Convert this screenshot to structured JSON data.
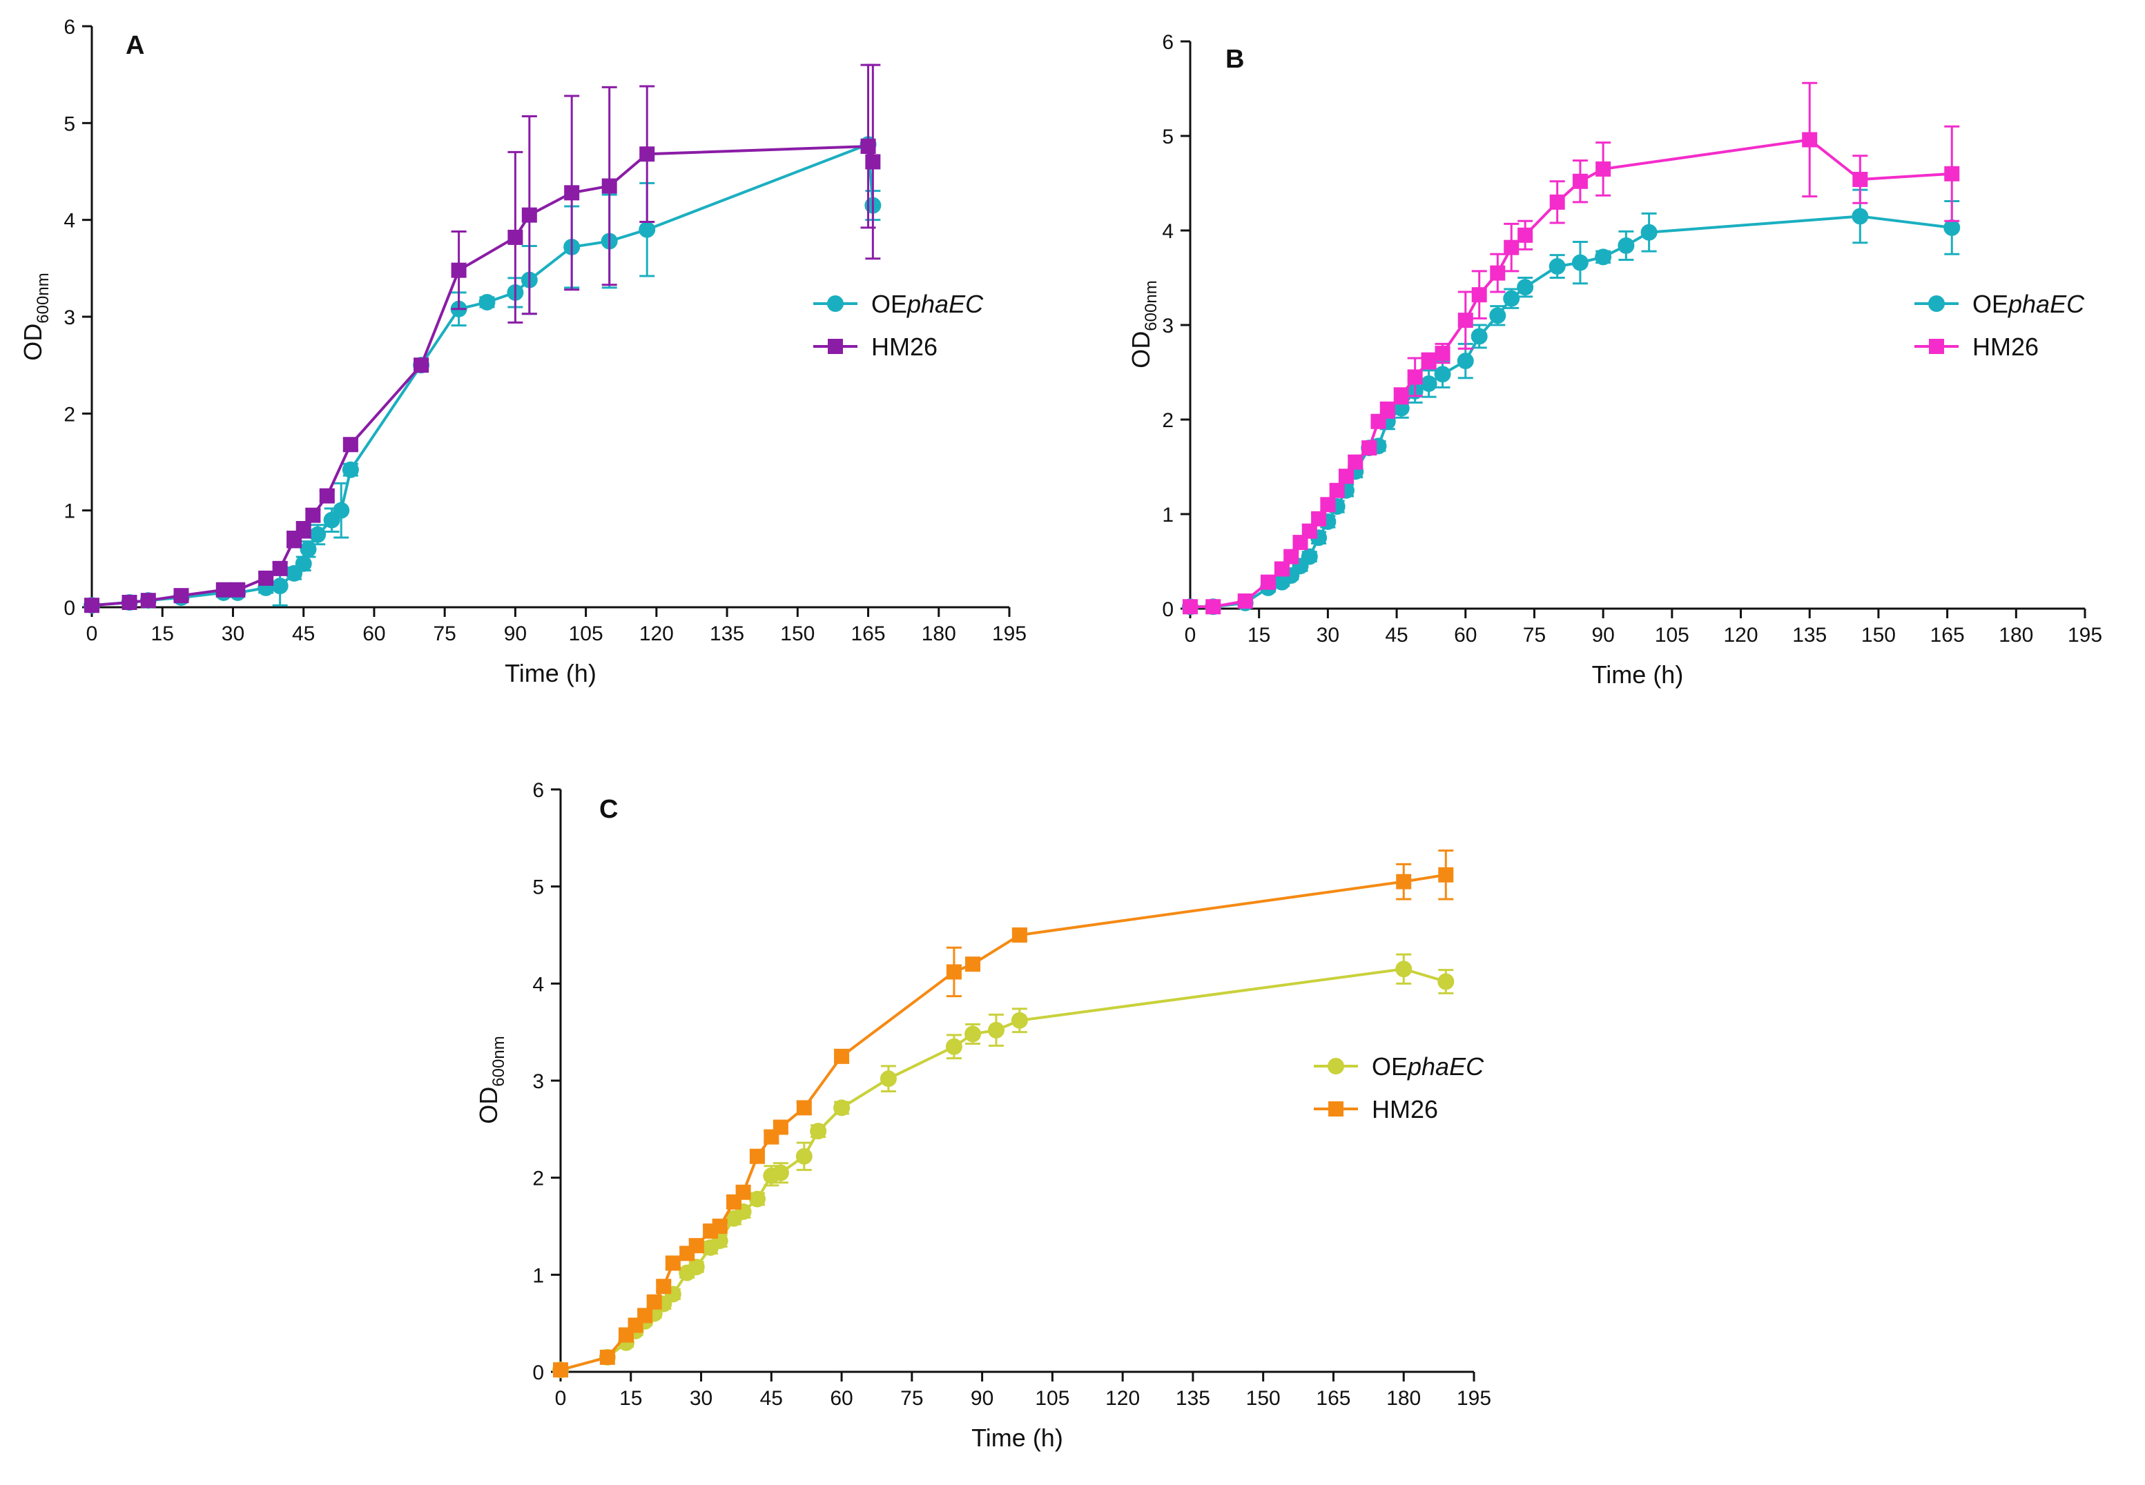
{
  "chart_data": [
    {
      "type": "line",
      "panel_label": "A",
      "xlabel": "Time (h)",
      "ylabel_main": "OD",
      "ylabel_sub": "600nm",
      "xlim": [
        0,
        195
      ],
      "ylim": [
        0,
        6
      ],
      "xticks": [
        "0",
        "15",
        "30",
        "45",
        "60",
        "75",
        "90",
        "105",
        "120",
        "135",
        "150",
        "165",
        "180",
        "195"
      ],
      "yticks": [
        "0",
        "1",
        "2",
        "3",
        "4",
        "5",
        "6"
      ],
      "legend_position": "right-middle",
      "series": [
        {
          "name_prefix": "OE",
          "name_italic": "phaEC",
          "marker": "circle",
          "color": "#1AAFC0",
          "x": [
            0,
            8,
            12,
            19,
            28,
            31,
            37,
            40,
            43,
            45,
            46,
            48,
            51,
            53,
            55,
            70,
            78,
            84,
            90,
            93,
            102,
            110,
            118,
            165,
            166
          ],
          "y": [
            0.02,
            0.05,
            0.07,
            0.1,
            0.15,
            0.15,
            0.2,
            0.22,
            0.35,
            0.45,
            0.6,
            0.75,
            0.9,
            1.0,
            1.42,
            2.5,
            3.08,
            3.15,
            3.25,
            3.38,
            3.72,
            3.78,
            3.9,
            4.78,
            4.15
          ],
          "err": [
            0.02,
            0.02,
            0.02,
            0.03,
            0.04,
            0.04,
            0.05,
            0.2,
            0.06,
            0.07,
            0.08,
            0.1,
            0.12,
            0.28,
            0.06,
            0.05,
            0.17,
            0.05,
            0.15,
            0.35,
            0.42,
            0.48,
            0.48,
            0.05,
            0.15
          ]
        },
        {
          "name": "HM26",
          "marker": "square",
          "color": "#8A1CA6",
          "x": [
            0,
            8,
            12,
            19,
            28,
            31,
            37,
            40,
            43,
            45,
            47,
            50,
            55,
            70,
            78,
            90,
            93,
            102,
            110,
            118,
            165,
            166
          ],
          "y": [
            0.02,
            0.05,
            0.07,
            0.12,
            0.18,
            0.18,
            0.3,
            0.4,
            0.7,
            0.8,
            0.95,
            1.15,
            1.68,
            2.5,
            3.48,
            3.82,
            4.05,
            4.28,
            4.35,
            4.68,
            4.76,
            4.6
          ],
          "err": [
            0.02,
            0.02,
            0.02,
            0.04,
            0.04,
            0.04,
            0.05,
            0.06,
            0.08,
            0.08,
            0.06,
            0.05,
            0.06,
            0.05,
            0.4,
            0.88,
            1.02,
            1.0,
            1.02,
            0.7,
            0.84,
            1.0
          ]
        }
      ]
    },
    {
      "type": "line",
      "panel_label": "B",
      "xlabel": "Time (h)",
      "ylabel_main": "OD",
      "ylabel_sub": "600nm",
      "xlim": [
        0,
        195
      ],
      "ylim": [
        0,
        6
      ],
      "xticks": [
        "0",
        "15",
        "30",
        "45",
        "60",
        "75",
        "90",
        "105",
        "120",
        "135",
        "150",
        "165",
        "180",
        "195"
      ],
      "yticks": [
        "0",
        "1",
        "2",
        "3",
        "4",
        "5",
        "6"
      ],
      "legend_position": "right-middle",
      "series": [
        {
          "name_prefix": "OE",
          "name_italic": "phaEC",
          "marker": "circle",
          "color": "#1AAFC0",
          "x": [
            0,
            5,
            12,
            17,
            20,
            22,
            24,
            26,
            28,
            30,
            32,
            34,
            36,
            39,
            41,
            43,
            46,
            49,
            52,
            55,
            60,
            63,
            67,
            70,
            73,
            80,
            85,
            90,
            95,
            100,
            146,
            166
          ],
          "y": [
            0.02,
            0.02,
            0.06,
            0.22,
            0.28,
            0.35,
            0.45,
            0.55,
            0.75,
            0.92,
            1.08,
            1.25,
            1.45,
            1.7,
            1.72,
            1.98,
            2.12,
            2.3,
            2.38,
            2.48,
            2.62,
            2.88,
            3.1,
            3.28,
            3.4,
            3.62,
            3.66,
            3.72,
            3.84,
            3.98,
            4.15,
            4.03
          ],
          "err": [
            0.02,
            0.02,
            0.02,
            0.04,
            0.04,
            0.04,
            0.05,
            0.05,
            0.06,
            0.06,
            0.06,
            0.06,
            0.06,
            0.06,
            0.05,
            0.08,
            0.1,
            0.12,
            0.14,
            0.14,
            0.18,
            0.12,
            0.1,
            0.1,
            0.1,
            0.12,
            0.22,
            0.06,
            0.15,
            0.2,
            0.28,
            0.28
          ]
        },
        {
          "name": "HM26",
          "marker": "square",
          "color": "#F42CCB",
          "x": [
            0,
            5,
            12,
            17,
            20,
            22,
            24,
            26,
            28,
            30,
            32,
            34,
            36,
            39,
            41,
            43,
            46,
            49,
            52,
            55,
            60,
            63,
            67,
            70,
            73,
            80,
            85,
            90,
            135,
            146,
            166
          ],
          "y": [
            0.02,
            0.02,
            0.08,
            0.28,
            0.42,
            0.55,
            0.7,
            0.82,
            0.95,
            1.1,
            1.25,
            1.4,
            1.55,
            1.7,
            1.98,
            2.1,
            2.25,
            2.45,
            2.62,
            2.7,
            3.05,
            3.32,
            3.55,
            3.82,
            3.95,
            4.3,
            4.52,
            4.65,
            4.96,
            4.54,
            4.6
          ],
          "err": [
            0.02,
            0.02,
            0.02,
            0.04,
            0.04,
            0.04,
            0.06,
            0.06,
            0.06,
            0.06,
            0.06,
            0.06,
            0.06,
            0.06,
            0.06,
            0.08,
            0.08,
            0.2,
            0.08,
            0.1,
            0.3,
            0.25,
            0.2,
            0.25,
            0.15,
            0.22,
            0.22,
            0.28,
            0.6,
            0.25,
            0.5
          ]
        }
      ]
    },
    {
      "type": "line",
      "panel_label": "C",
      "xlabel": "Time (h)",
      "ylabel_main": "OD",
      "ylabel_sub": "600nm",
      "xlim": [
        0,
        195
      ],
      "ylim": [
        0,
        6
      ],
      "xticks": [
        "0",
        "15",
        "30",
        "45",
        "60",
        "75",
        "90",
        "105",
        "120",
        "135",
        "150",
        "165",
        "180",
        "195"
      ],
      "yticks": [
        "0",
        "1",
        "2",
        "3",
        "4",
        "5",
        "6"
      ],
      "legend_position": "right-middle",
      "series": [
        {
          "name_prefix": "OE",
          "name_italic": "phaEC",
          "marker": "circle",
          "color": "#C9D13B",
          "x": [
            0,
            10,
            14,
            16,
            18,
            20,
            22,
            24,
            27,
            29,
            32,
            34,
            37,
            39,
            42,
            45,
            47,
            52,
            55,
            60,
            70,
            84,
            88,
            93,
            98,
            180,
            189
          ],
          "y": [
            0.02,
            0.15,
            0.3,
            0.42,
            0.52,
            0.6,
            0.7,
            0.8,
            1.02,
            1.08,
            1.28,
            1.35,
            1.58,
            1.65,
            1.78,
            2.02,
            2.05,
            2.22,
            2.48,
            2.72,
            3.02,
            3.35,
            3.48,
            3.52,
            3.62,
            4.15,
            4.02
          ],
          "err": [
            0.02,
            0.02,
            0.04,
            0.04,
            0.04,
            0.04,
            0.05,
            0.05,
            0.05,
            0.05,
            0.06,
            0.06,
            0.06,
            0.06,
            0.06,
            0.1,
            0.1,
            0.14,
            0.06,
            0.06,
            0.13,
            0.12,
            0.1,
            0.16,
            0.12,
            0.15,
            0.12
          ]
        },
        {
          "name": "HM26",
          "marker": "square",
          "color": "#F58A13",
          "x": [
            0,
            10,
            14,
            16,
            18,
            20,
            22,
            24,
            27,
            29,
            32,
            34,
            37,
            39,
            42,
            45,
            47,
            52,
            60,
            84,
            88,
            98,
            180,
            189
          ],
          "y": [
            0.02,
            0.15,
            0.38,
            0.48,
            0.58,
            0.72,
            0.88,
            1.12,
            1.22,
            1.3,
            1.45,
            1.5,
            1.75,
            1.85,
            2.22,
            2.42,
            2.52,
            2.72,
            3.25,
            4.12,
            4.2,
            4.5,
            5.05,
            5.12
          ],
          "err": [
            0.02,
            0.02,
            0.04,
            0.04,
            0.04,
            0.05,
            0.05,
            0.06,
            0.06,
            0.06,
            0.06,
            0.06,
            0.06,
            0.06,
            0.06,
            0.06,
            0.06,
            0.06,
            0.06,
            0.25,
            0.05,
            0.05,
            0.18,
            0.25
          ]
        }
      ]
    }
  ]
}
